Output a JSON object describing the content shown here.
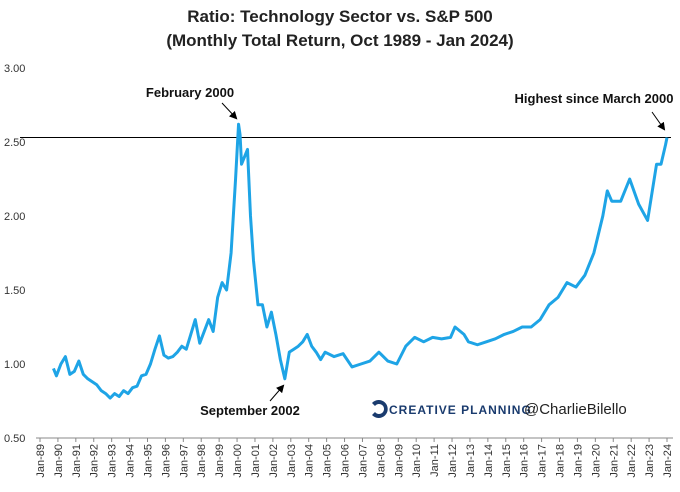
{
  "chart_data": {
    "type": "line",
    "title": "Ratio: Technology Sector vs. S&P 500",
    "subtitle": "(Monthly Total Return, Oct 1989 - Jan 2024)",
    "x": [
      "1989-10",
      "1989-12",
      "1990-03",
      "1990-06",
      "1990-09",
      "1990-12",
      "1991-03",
      "1991-06",
      "1991-09",
      "1991-12",
      "1992-03",
      "1992-06",
      "1992-09",
      "1992-12",
      "1993-03",
      "1993-06",
      "1993-09",
      "1993-12",
      "1994-03",
      "1994-06",
      "1994-09",
      "1994-12",
      "1995-03",
      "1995-06",
      "1995-09",
      "1995-12",
      "1996-03",
      "1996-06",
      "1996-09",
      "1996-12",
      "1997-03",
      "1997-06",
      "1997-09",
      "1997-12",
      "1998-03",
      "1998-06",
      "1998-09",
      "1998-12",
      "1999-03",
      "1999-06",
      "1999-09",
      "1999-12",
      "2000-02",
      "2000-03",
      "2000-04",
      "2000-06",
      "2000-08",
      "2000-10",
      "2000-12",
      "2001-03",
      "2001-06",
      "2001-09",
      "2001-12",
      "2002-03",
      "2002-06",
      "2002-09",
      "2002-12",
      "2003-03",
      "2003-06",
      "2003-09",
      "2003-12",
      "2004-03",
      "2004-06",
      "2004-09",
      "2004-12",
      "2005-06",
      "2005-12",
      "2006-06",
      "2006-12",
      "2007-06",
      "2007-12",
      "2008-06",
      "2008-12",
      "2009-06",
      "2009-12",
      "2010-06",
      "2010-12",
      "2011-06",
      "2011-12",
      "2012-03",
      "2012-09",
      "2012-12",
      "2013-06",
      "2013-12",
      "2014-06",
      "2014-12",
      "2015-06",
      "2015-12",
      "2016-06",
      "2016-12",
      "2017-06",
      "2017-12",
      "2018-06",
      "2018-12",
      "2019-06",
      "2019-12",
      "2020-06",
      "2020-09",
      "2020-12",
      "2021-06",
      "2021-12",
      "2022-06",
      "2022-12",
      "2023-06",
      "2023-09",
      "2023-12",
      "2024-01"
    ],
    "series": [
      {
        "name": "Ratio",
        "color": "#1ea4e6",
        "values": [
          0.97,
          0.92,
          1.0,
          1.05,
          0.93,
          0.95,
          1.02,
          0.93,
          0.9,
          0.88,
          0.86,
          0.82,
          0.8,
          0.77,
          0.8,
          0.78,
          0.82,
          0.8,
          0.84,
          0.85,
          0.92,
          0.93,
          1.0,
          1.1,
          1.19,
          1.06,
          1.04,
          1.05,
          1.08,
          1.12,
          1.1,
          1.2,
          1.3,
          1.14,
          1.22,
          1.3,
          1.22,
          1.45,
          1.55,
          1.5,
          1.75,
          2.25,
          2.62,
          2.55,
          2.35,
          2.4,
          2.45,
          2.0,
          1.7,
          1.4,
          1.4,
          1.25,
          1.35,
          1.2,
          1.03,
          0.9,
          1.08,
          1.1,
          1.12,
          1.15,
          1.2,
          1.12,
          1.08,
          1.03,
          1.08,
          1.05,
          1.07,
          0.98,
          1.0,
          1.02,
          1.08,
          1.02,
          1.0,
          1.12,
          1.18,
          1.15,
          1.18,
          1.17,
          1.18,
          1.25,
          1.2,
          1.15,
          1.13,
          1.15,
          1.17,
          1.2,
          1.22,
          1.25,
          1.25,
          1.3,
          1.4,
          1.45,
          1.55,
          1.52,
          1.6,
          1.75,
          2.0,
          2.17,
          2.1,
          2.1,
          2.25,
          2.08,
          1.97,
          2.35,
          2.35,
          2.48,
          2.53
        ]
      }
    ],
    "xlim": [
      "1989-01",
      "2024-01"
    ],
    "xticks": [
      {
        "value": "1989-01",
        "label": "Jan-89"
      },
      {
        "value": "1990-01",
        "label": "Jan-90"
      },
      {
        "value": "1991-01",
        "label": "Jan-91"
      },
      {
        "value": "1992-01",
        "label": "Jan-92"
      },
      {
        "value": "1993-01",
        "label": "Jan-93"
      },
      {
        "value": "1994-01",
        "label": "Jan-94"
      },
      {
        "value": "1995-01",
        "label": "Jan-95"
      },
      {
        "value": "1996-01",
        "label": "Jan-96"
      },
      {
        "value": "1997-01",
        "label": "Jan-97"
      },
      {
        "value": "1998-01",
        "label": "Jan-98"
      },
      {
        "value": "1999-01",
        "label": "Jan-99"
      },
      {
        "value": "2000-01",
        "label": "Jan-00"
      },
      {
        "value": "2001-01",
        "label": "Jan-01"
      },
      {
        "value": "2002-01",
        "label": "Jan-02"
      },
      {
        "value": "2003-01",
        "label": "Jan-03"
      },
      {
        "value": "2004-01",
        "label": "Jan-04"
      },
      {
        "value": "2005-01",
        "label": "Jan-05"
      },
      {
        "value": "2006-01",
        "label": "Jan-06"
      },
      {
        "value": "2007-01",
        "label": "Jan-07"
      },
      {
        "value": "2008-01",
        "label": "Jan-08"
      },
      {
        "value": "2009-01",
        "label": "Jan-09"
      },
      {
        "value": "2010-01",
        "label": "Jan-10"
      },
      {
        "value": "2011-01",
        "label": "Jan-11"
      },
      {
        "value": "2012-01",
        "label": "Jan-12"
      },
      {
        "value": "2013-01",
        "label": "Jan-13"
      },
      {
        "value": "2014-01",
        "label": "Jan-14"
      },
      {
        "value": "2015-01",
        "label": "Jan-15"
      },
      {
        "value": "2016-01",
        "label": "Jan-16"
      },
      {
        "value": "2017-01",
        "label": "Jan-17"
      },
      {
        "value": "2018-01",
        "label": "Jan-18"
      },
      {
        "value": "2019-01",
        "label": "Jan-19"
      },
      {
        "value": "2020-01",
        "label": "Jan-20"
      },
      {
        "value": "2021-01",
        "label": "Jan-21"
      },
      {
        "value": "2022-01",
        "label": "Jan-22"
      },
      {
        "value": "2023-01",
        "label": "Jan-23"
      },
      {
        "value": "2024-01",
        "label": "Jan-24"
      }
    ],
    "ylim": [
      0.5,
      3.0
    ],
    "yticks": [
      {
        "value": 0.5,
        "label": "0.50"
      },
      {
        "value": 1.0,
        "label": "1.00"
      },
      {
        "value": 1.5,
        "label": "1.50"
      },
      {
        "value": 2.0,
        "label": "2.00"
      },
      {
        "value": 2.5,
        "label": "2.50"
      },
      {
        "value": 3.0,
        "label": "3.00"
      }
    ],
    "reference_line": 2.53,
    "annotations": [
      "February 2000",
      "September 2002",
      "Highest since March 2000"
    ],
    "logo": "CREATIVE PLANNING",
    "handle": "@CharlieBilello"
  }
}
